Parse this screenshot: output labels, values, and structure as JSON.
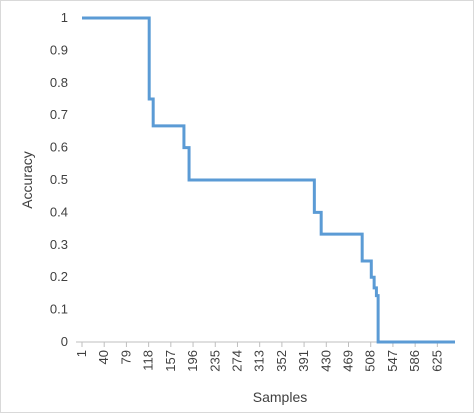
{
  "chart_data": {
    "type": "line",
    "x_label": "Samples",
    "y_label": "Accuracy",
    "x": [
      1,
      119,
      119,
      126,
      126,
      180,
      180,
      189,
      189,
      409,
      409,
      421,
      421,
      493,
      493,
      509,
      509,
      514,
      514,
      518,
      518,
      521,
      521,
      656
    ],
    "values": [
      1,
      1,
      0.75,
      0.75,
      0.667,
      0.667,
      0.6,
      0.6,
      0.5,
      0.5,
      0.4,
      0.4,
      0.333,
      0.333,
      0.25,
      0.25,
      0.2,
      0.2,
      0.167,
      0.167,
      0.143,
      0.143,
      0,
      0
    ],
    "color": "#5b9bd5",
    "xlim": [
      1,
      656
    ],
    "xticks": [
      1,
      40,
      79,
      118,
      157,
      196,
      235,
      274,
      313,
      352,
      391,
      430,
      469,
      508,
      547,
      586,
      625
    ],
    "ylim": [
      0,
      1
    ],
    "yticks": [
      0,
      0.1,
      0.2,
      0.3,
      0.4,
      0.5,
      0.6,
      0.7,
      0.8,
      0.9,
      1
    ],
    "grid": false
  }
}
